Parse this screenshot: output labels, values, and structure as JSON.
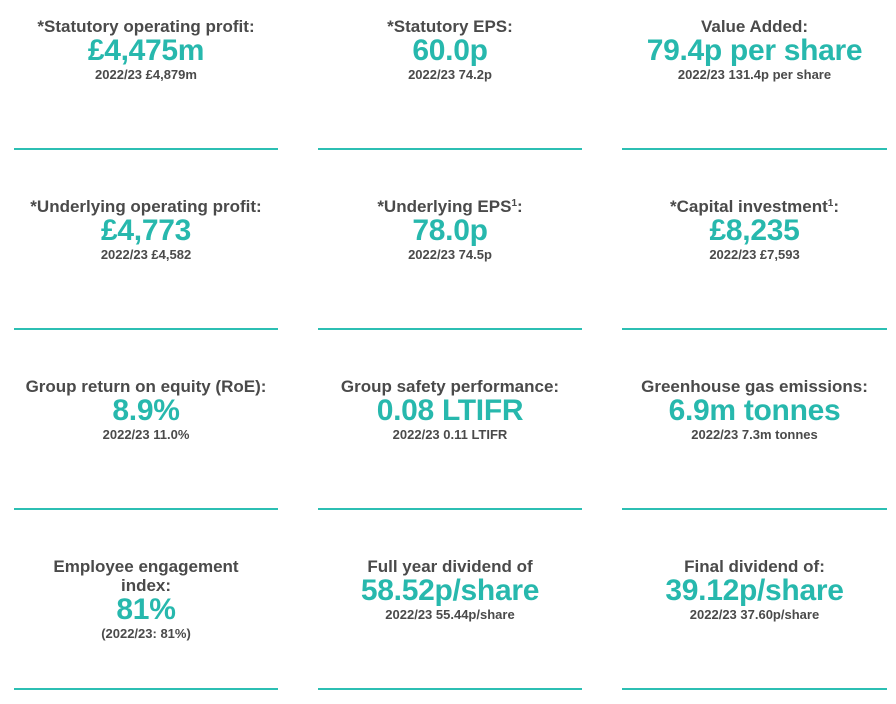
{
  "kpis": [
    {
      "label": "*Statutory operating profit:",
      "sup": "",
      "label_suffix": "",
      "value": "£4,475m",
      "compare": "2022/23 £4,879m"
    },
    {
      "label": "*Statutory EPS:",
      "sup": "",
      "label_suffix": "",
      "value": "60.0p",
      "compare": "2022/23 74.2p"
    },
    {
      "label": "Value Added:",
      "sup": "",
      "label_suffix": "",
      "value": "79.4p per share",
      "compare": "2022/23 131.4p per share"
    },
    {
      "label": "*Underlying operating profit:",
      "sup": "",
      "label_suffix": "",
      "value": "£4,773",
      "compare": "2022/23 £4,582"
    },
    {
      "label": "*Underlying EPS",
      "sup": "1",
      "label_suffix": ":",
      "value": "78.0p",
      "compare": "2022/23 74.5p"
    },
    {
      "label": "*Capital investment",
      "sup": "1",
      "label_suffix": ":",
      "value": "£8,235",
      "compare": "2022/23 £7,593"
    },
    {
      "label": "Group return on equity (RoE):",
      "sup": "",
      "label_suffix": "",
      "value": "8.9%",
      "compare": "2022/23 11.0%"
    },
    {
      "label": "Group safety performance:",
      "sup": "",
      "label_suffix": "",
      "value": "0.08 LTIFR",
      "compare": "2022/23 0.11 LTIFR"
    },
    {
      "label": "Greenhouse gas emissions:",
      "sup": "",
      "label_suffix": "",
      "value": "6.9m tonnes",
      "compare": "2022/23 7.3m tonnes"
    },
    {
      "label": "Employee engagement index:",
      "sup": "",
      "label_suffix": "",
      "value": "81%",
      "compare": "(2022/23: 81%)"
    },
    {
      "label": "Full year dividend of",
      "sup": "",
      "label_suffix": "",
      "value": "58.52p/share",
      "compare": "2022/23 55.44p/share"
    },
    {
      "label": "Final dividend of:",
      "sup": "",
      "label_suffix": "",
      "value": "39.12p/share",
      "compare": "2022/23 37.60p/share"
    }
  ],
  "colors": {
    "accent": "#27b8ad",
    "rule": "#2cbfb3",
    "text": "#4a4a4a"
  }
}
